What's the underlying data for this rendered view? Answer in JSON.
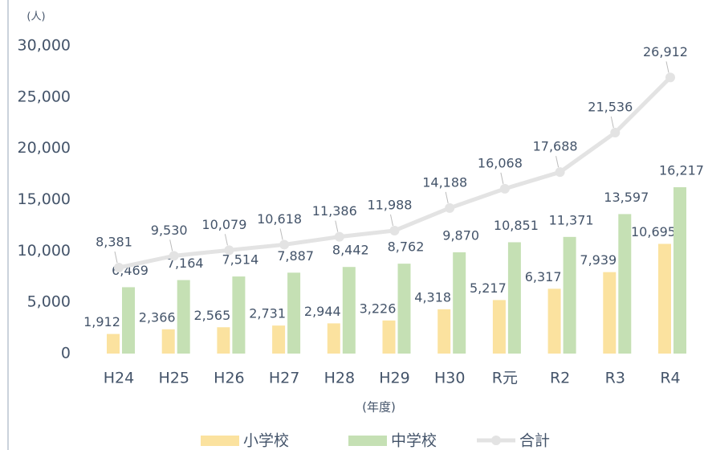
{
  "chart_data": {
    "type": "bar",
    "y_unit": "(人)",
    "x_label": "(年度)",
    "categories": [
      "H24",
      "H25",
      "H26",
      "H27",
      "H28",
      "H29",
      "H30",
      "R元",
      "R2",
      "R3",
      "R4"
    ],
    "series": [
      {
        "name": "小学校",
        "type": "bar",
        "color": "#fbe29f",
        "values": [
          1912,
          2366,
          2565,
          2731,
          2944,
          3226,
          4318,
          5217,
          6317,
          7939,
          10695
        ],
        "value_labels": [
          "1,912",
          "2,366",
          "2,565",
          "2,731",
          "2,944",
          "3,226",
          "4,318",
          "5,217",
          "6,317",
          "7,939",
          "10,695"
        ]
      },
      {
        "name": "中学校",
        "type": "bar",
        "color": "#c5e0b4",
        "values": [
          6469,
          7164,
          7514,
          7887,
          8442,
          8762,
          9870,
          10851,
          11371,
          13597,
          16217
        ],
        "value_labels": [
          "6,469",
          "7,164",
          "7,514",
          "7,887",
          "8,442",
          "8,762",
          "9,870",
          "10,851",
          "11,371",
          "13,597",
          "16,217"
        ]
      },
      {
        "name": "合計",
        "type": "line",
        "color": "#e3e3e3",
        "values": [
          8381,
          9530,
          10079,
          10618,
          11386,
          11988,
          14188,
          16068,
          17688,
          21536,
          26912
        ],
        "value_labels": [
          "8,381",
          "9,530",
          "10,079",
          "10,618",
          "11,386",
          "11,988",
          "14,188",
          "16,068",
          "17,688",
          "21,536",
          "26,912"
        ]
      }
    ],
    "ylim": [
      0,
      30000
    ],
    "yticks": [
      0,
      {
        "value": 5000,
        "label": "5,000"
      },
      {
        "value": 10000,
        "label": "10,000"
      },
      {
        "value": 15000,
        "label": "15,000"
      },
      {
        "value": 20000,
        "label": "20,000"
      },
      {
        "value": 25000,
        "label": "25,000"
      },
      {
        "value": 30000,
        "label": "30,000"
      }
    ],
    "grid": false,
    "legend": "bottom"
  }
}
